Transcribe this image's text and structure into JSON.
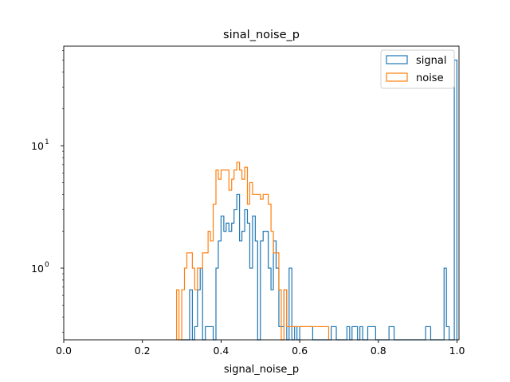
{
  "chart_data": {
    "type": "histogram",
    "title": "sinal_noise_p",
    "xlabel": "signal_noise_p",
    "ylabel": "",
    "xlim": [
      0.0,
      1.005
    ],
    "ylim": [
      0.26,
      65
    ],
    "yscale": "log",
    "grid": false,
    "legend_position": "top-right",
    "bin_width": 0.0067,
    "x_ticks": [
      {
        "value": 0.0,
        "label": "0.0"
      },
      {
        "value": 0.2,
        "label": "0.2"
      },
      {
        "value": 0.4,
        "label": "0.4"
      },
      {
        "value": 0.6,
        "label": "0.6"
      },
      {
        "value": 0.8,
        "label": "0.8"
      },
      {
        "value": 1.0,
        "label": "1.0"
      }
    ],
    "y_ticks": [
      {
        "value": 1,
        "base": "10",
        "exp": "0"
      },
      {
        "value": 10,
        "base": "10",
        "exp": "1"
      }
    ],
    "series": [
      {
        "name": "signal",
        "color": "#1f77b4",
        "x": [
          0.3,
          0.307,
          0.313,
          0.32,
          0.327,
          0.333,
          0.34,
          0.347,
          0.353,
          0.36,
          0.367,
          0.373,
          0.38,
          0.387,
          0.393,
          0.4,
          0.407,
          0.413,
          0.42,
          0.427,
          0.433,
          0.44,
          0.447,
          0.453,
          0.46,
          0.467,
          0.473,
          0.48,
          0.487,
          0.493,
          0.5,
          0.507,
          0.513,
          0.52,
          0.527,
          0.533,
          0.54,
          0.547,
          0.553,
          0.56,
          0.567,
          0.573,
          0.58,
          0.587,
          0.593,
          0.6,
          0.607,
          0.613,
          0.62,
          0.627,
          0.633,
          0.64,
          0.647,
          0.653,
          0.66,
          0.667,
          0.673,
          0.68,
          0.687,
          0.693,
          0.7,
          0.707,
          0.713,
          0.72,
          0.727,
          0.733,
          0.74,
          0.747,
          0.753,
          0.76,
          0.767,
          0.773,
          0.78,
          0.787,
          0.793,
          0.8,
          0.807,
          0.813,
          0.82,
          0.827,
          0.833,
          0.84,
          0.847,
          0.853,
          0.86,
          0.867,
          0.873,
          0.88,
          0.887,
          0.893,
          0.9,
          0.907,
          0.913,
          0.92,
          0.927,
          0.933,
          0.94,
          0.947,
          0.953,
          0.96,
          0.967,
          0.973,
          0.98,
          0.987,
          0.993
        ],
        "values": [
          0,
          0,
          0,
          0.667,
          0,
          0.333,
          0.667,
          1,
          0,
          0.333,
          0.333,
          0.333,
          0,
          1,
          1.667,
          2.667,
          2,
          2.333,
          2,
          2.333,
          3,
          4,
          1.667,
          2,
          3,
          2.333,
          1,
          2.667,
          1.667,
          0,
          1.667,
          2,
          2,
          1,
          0.667,
          1.667,
          1,
          0.333,
          0.333,
          0.667,
          0,
          1,
          0,
          0.333,
          0,
          0.333,
          0.333,
          0.333,
          0.333,
          0.333,
          0,
          0,
          0,
          0,
          0,
          0,
          0,
          0.333,
          0.333,
          0,
          0,
          0,
          0,
          0.333,
          0,
          0.333,
          0.333,
          0,
          0.333,
          0,
          0,
          0.333,
          0.333,
          0.333,
          0,
          0,
          0,
          0,
          0,
          0.333,
          0.333,
          0,
          0,
          0,
          0,
          0,
          0,
          0,
          0,
          0,
          0,
          0,
          0,
          0.333,
          0.333,
          0,
          0,
          0,
          0,
          0,
          1,
          0.333,
          0,
          0,
          50
        ]
      },
      {
        "name": "noise",
        "color": "#ff7f0e",
        "x": [
          0.287,
          0.293,
          0.3,
          0.307,
          0.313,
          0.32,
          0.327,
          0.333,
          0.34,
          0.347,
          0.353,
          0.36,
          0.367,
          0.373,
          0.38,
          0.387,
          0.393,
          0.4,
          0.407,
          0.413,
          0.42,
          0.427,
          0.433,
          0.44,
          0.447,
          0.453,
          0.46,
          0.467,
          0.473,
          0.48,
          0.487,
          0.493,
          0.5,
          0.507,
          0.513,
          0.52,
          0.527,
          0.533,
          0.54,
          0.547,
          0.553,
          0.56,
          0.567,
          0.573,
          0.58,
          0.587,
          0.593,
          0.6,
          0.607,
          0.613,
          0.62,
          0.627,
          0.633,
          0.64,
          0.647,
          0.653,
          0.66,
          0.667
        ],
        "values": [
          0.667,
          0,
          0.667,
          1,
          1.333,
          1.333,
          1,
          0.667,
          1,
          1,
          1.333,
          1.333,
          2,
          1.667,
          3.333,
          6.333,
          5.333,
          6.333,
          6.333,
          6.333,
          4.333,
          5.333,
          6.333,
          7.333,
          6.333,
          5.333,
          6.667,
          3.333,
          5,
          4,
          4,
          4,
          3.667,
          4,
          4,
          3.333,
          2,
          1.333,
          1.333,
          0.667,
          0,
          0.667,
          0.333,
          0.333,
          0.333,
          0.333,
          0.333,
          0.333,
          0.333,
          0.333,
          0.333,
          0.333,
          0.333,
          0.333,
          0.333,
          0.333,
          0.333,
          0.333
        ]
      }
    ]
  }
}
